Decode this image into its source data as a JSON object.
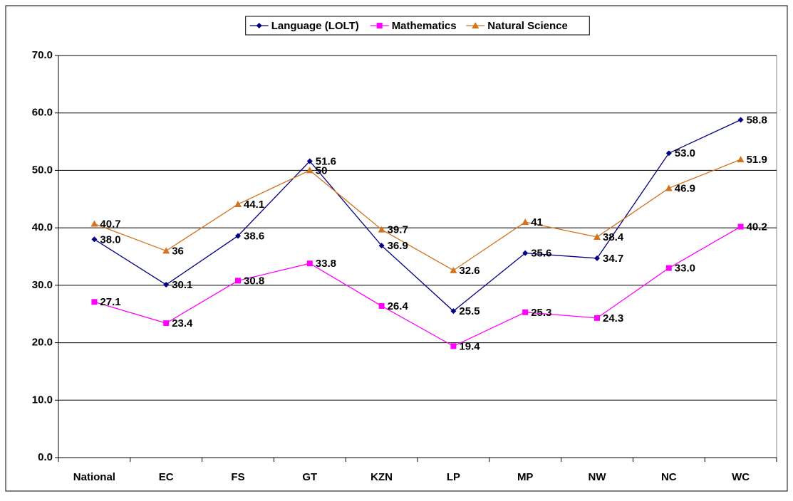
{
  "chart_data": {
    "type": "line",
    "categories": [
      "National",
      "EC",
      "FS",
      "GT",
      "KZN",
      "LP",
      "MP",
      "NW",
      "NC",
      "WC"
    ],
    "series": [
      {
        "name": "Language (LOLT)",
        "color": "#000080",
        "marker": "diamond",
        "values": [
          38.0,
          30.1,
          38.6,
          51.6,
          36.9,
          25.5,
          35.6,
          34.7,
          53.0,
          58.8
        ],
        "value_labels": [
          "38.0",
          "30.1",
          "38.6",
          "51.6",
          "36.9",
          "25.5",
          "35.6",
          "34.7",
          "53.0",
          "58.8"
        ]
      },
      {
        "name": "Mathematics",
        "color": "#ff00ff",
        "marker": "square",
        "values": [
          27.1,
          23.4,
          30.8,
          33.8,
          26.4,
          19.4,
          25.3,
          24.3,
          33.0,
          40.2
        ],
        "value_labels": [
          "27.1",
          "23.4",
          "30.8",
          "33.8",
          "26.4",
          "19.4",
          "25.3",
          "24.3",
          "33.0",
          "40.2"
        ]
      },
      {
        "name": "Natural Science",
        "color": "#d2731e",
        "marker": "triangle",
        "values": [
          40.7,
          36,
          44.1,
          50,
          39.7,
          32.6,
          41,
          38.4,
          46.9,
          51.9
        ],
        "value_labels": [
          "40.7",
          "36",
          "44.1",
          "50",
          "39.7",
          "32.6",
          "41",
          "38.4",
          "46.9",
          "51.9"
        ]
      }
    ],
    "ylim": [
      0,
      70
    ],
    "yticks": [
      {
        "value": 0,
        "label": "0.0"
      },
      {
        "value": 10,
        "label": "10.0"
      },
      {
        "value": 20,
        "label": "20.0"
      },
      {
        "value": 30,
        "label": "30.0"
      },
      {
        "value": 40,
        "label": "40.0"
      },
      {
        "value": 50,
        "label": "50.0"
      },
      {
        "value": 60,
        "label": "60.0"
      },
      {
        "value": 70,
        "label": "70.0"
      }
    ],
    "grid": true,
    "legend": "top"
  }
}
